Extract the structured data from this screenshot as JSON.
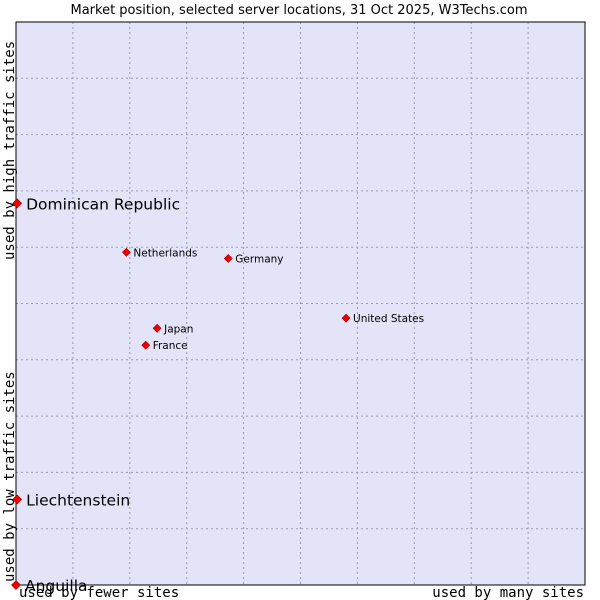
{
  "chart_data": {
    "type": "scatter",
    "title": "Market position, selected server locations, 31 Oct 2025, W3Techs.com",
    "xlabel_left": "used by fewer sites",
    "xlabel_right": "used by many sites",
    "ylabel_bottom": "used by low traffic sites",
    "ylabel_top": "used by high traffic sites",
    "xlim": [
      0,
      100
    ],
    "ylim": [
      0,
      100
    ],
    "grid": true,
    "colors": {
      "plot_bg": "#e4e4f8",
      "marker": "#ee0000",
      "border": "#000000",
      "grid": "#9a9ab0"
    },
    "points": [
      {
        "label": "Dominican Republic",
        "x": 0.2,
        "y": 67.8,
        "size": "large"
      },
      {
        "label": "Netherlands",
        "x": 19.4,
        "y": 59.1,
        "size": "small"
      },
      {
        "label": "Germany",
        "x": 37.3,
        "y": 58.0,
        "size": "small"
      },
      {
        "label": "United States",
        "x": 58.0,
        "y": 47.4,
        "size": "small"
      },
      {
        "label": "Japan",
        "x": 24.8,
        "y": 45.6,
        "size": "small"
      },
      {
        "label": "France",
        "x": 22.8,
        "y": 42.6,
        "size": "small"
      },
      {
        "label": "Liechtenstein",
        "x": 0.2,
        "y": 15.2,
        "size": "large"
      },
      {
        "label": "Anguilla",
        "x": 0.0,
        "y": 0.0,
        "size": "large"
      }
    ]
  }
}
